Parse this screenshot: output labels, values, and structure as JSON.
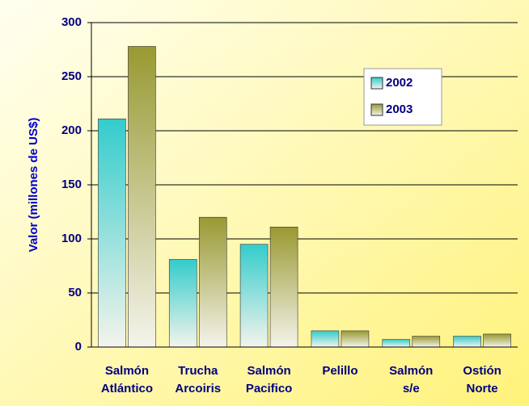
{
  "chart_data": {
    "type": "bar",
    "y_label": "Valor (millones de US$)",
    "categories": [
      [
        "Salmón",
        "Atlántico"
      ],
      [
        "Trucha",
        "Arcoiris"
      ],
      [
        "Salmón",
        "Pacifico"
      ],
      [
        "Pelillo"
      ],
      [
        "Salmón",
        "s/e"
      ],
      [
        "Ostión",
        "Norte"
      ]
    ],
    "series": [
      {
        "name": "2002",
        "color": "#33cccc",
        "values": [
          211,
          81,
          95,
          15,
          7,
          10
        ]
      },
      {
        "name": "2003",
        "color": "#999933",
        "values": [
          278,
          120,
          111,
          15,
          10,
          12
        ]
      }
    ],
    "ylim": [
      0,
      300
    ],
    "yticks": [
      0,
      50,
      100,
      150,
      200,
      250,
      300
    ],
    "grid": true,
    "legend": "upper right"
  }
}
